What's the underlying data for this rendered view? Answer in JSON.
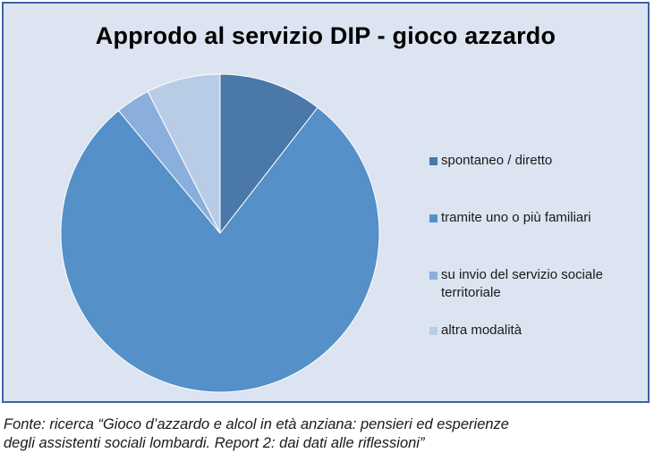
{
  "chart_data": {
    "type": "pie",
    "title": "Approdo al servizio DIP - gioco azzardo",
    "categories": [
      "spontaneo / diretto",
      "tramite uno o più familiari",
      "su invio del servizio sociale territoriale",
      "altra modalità"
    ],
    "values": [
      10.5,
      78.5,
      3.5,
      7.5
    ],
    "colors": [
      "#4a78a8",
      "#5590c8",
      "#8aafdd",
      "#b8cce6"
    ],
    "legend_position": "right"
  },
  "source": {
    "line1": "Fonte: ricerca “Gioco d’azzardo e alcol in età anziana: pensieri ed esperienze",
    "line2": "degli assistenti sociali lombardi. Report 2: dai dati alle riflessioni”"
  }
}
